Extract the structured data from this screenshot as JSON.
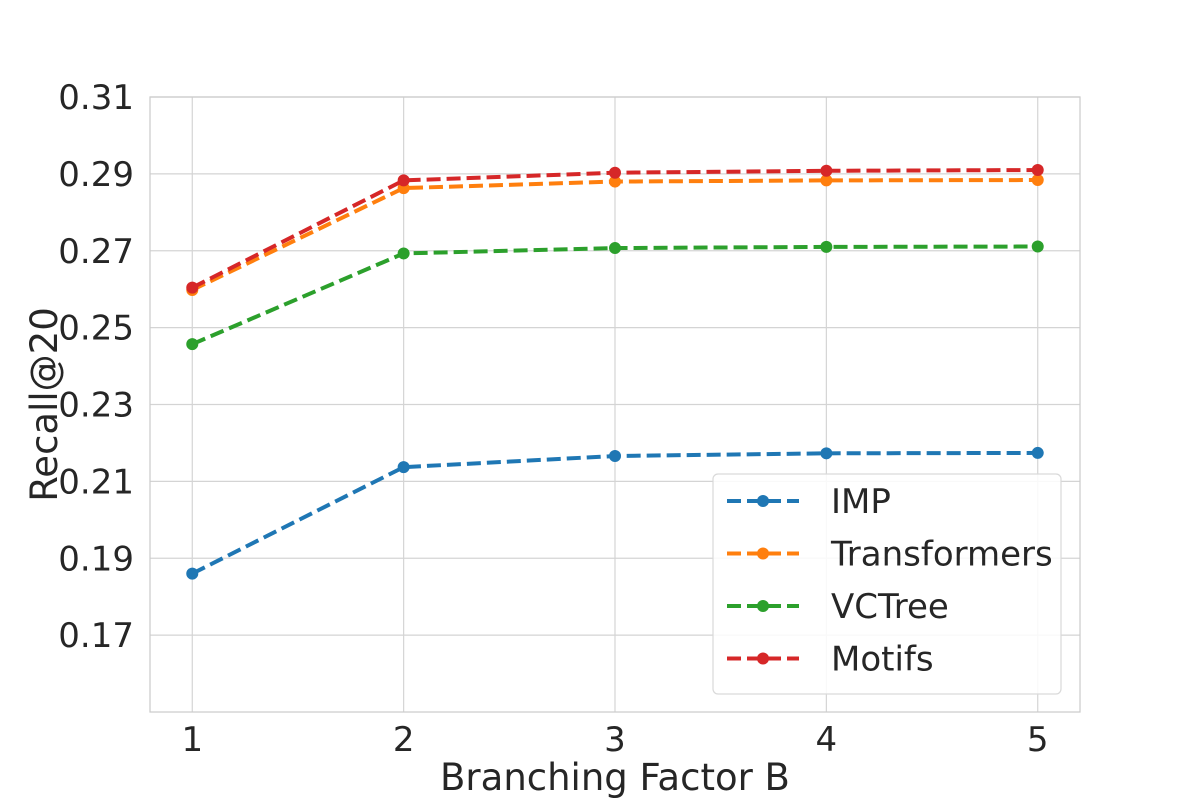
{
  "chart_data": {
    "type": "line",
    "title": "",
    "xlabel": "Branching Factor B",
    "ylabel": "Recall@20",
    "x": [
      1,
      2,
      3,
      4,
      5
    ],
    "x_tick_labels": [
      "1",
      "2",
      "3",
      "4",
      "5"
    ],
    "xlim": [
      0.8,
      5.2
    ],
    "ylim": [
      0.15,
      0.31
    ],
    "y_ticks": [
      0.17,
      0.19,
      0.21,
      0.23,
      0.25,
      0.27,
      0.29,
      0.31
    ],
    "y_tick_labels": [
      "0.17",
      "0.19",
      "0.21",
      "0.23",
      "0.25",
      "0.27",
      "0.29",
      "0.31"
    ],
    "grid": true,
    "legend_position": "lower-right",
    "line_style": "dashed",
    "marker": "circle",
    "series": [
      {
        "name": "IMP",
        "color": "#1f77b4",
        "values": [
          0.186,
          0.2137,
          0.2166,
          0.2173,
          0.2174
        ]
      },
      {
        "name": "Transformers",
        "color": "#ff7f0e",
        "values": [
          0.2598,
          0.2863,
          0.288,
          0.2883,
          0.2884
        ]
      },
      {
        "name": "VCTree",
        "color": "#2ca02c",
        "values": [
          0.2457,
          0.2693,
          0.2707,
          0.271,
          0.2711
        ]
      },
      {
        "name": "Motifs",
        "color": "#d62728",
        "values": [
          0.2604,
          0.2883,
          0.2903,
          0.2908,
          0.291
        ]
      }
    ]
  }
}
